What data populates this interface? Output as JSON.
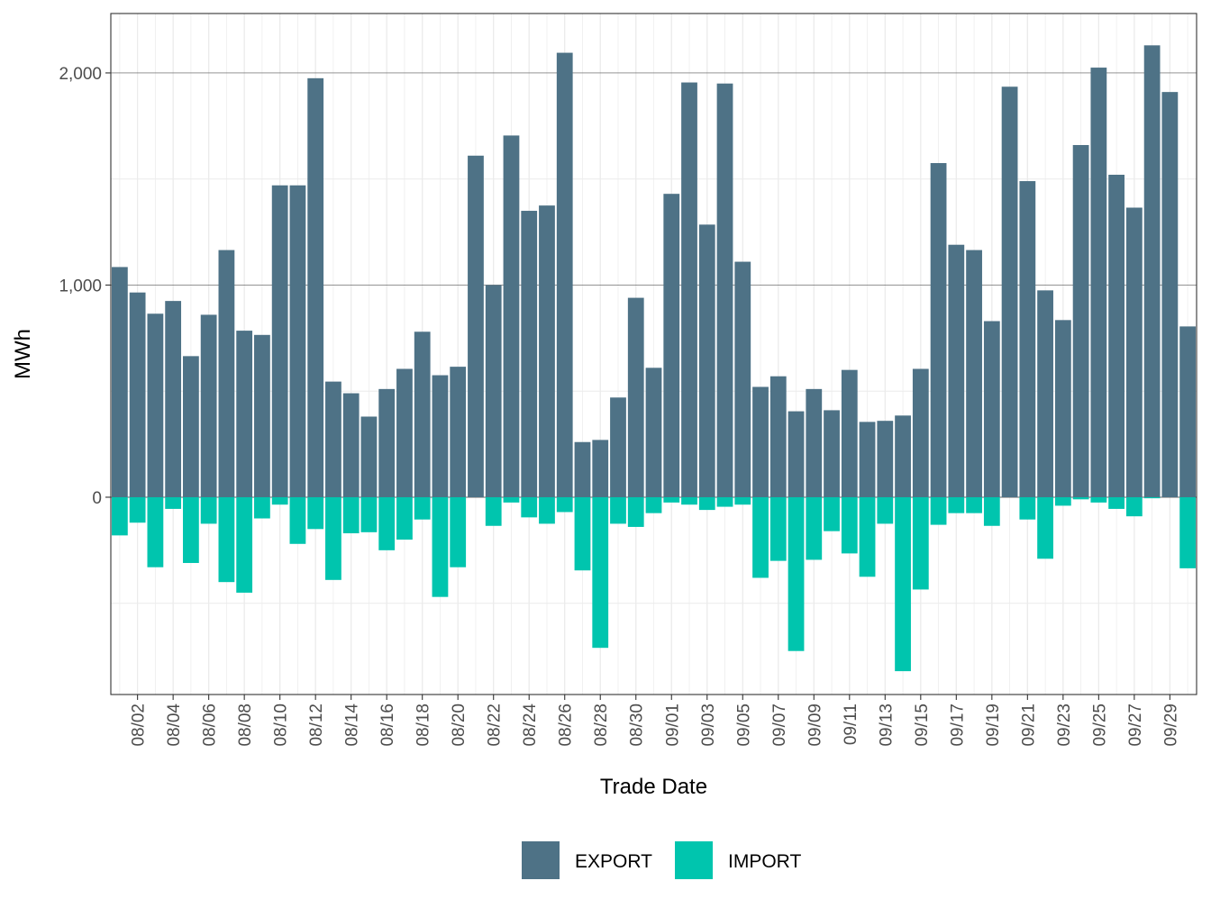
{
  "chart_data": {
    "type": "bar",
    "stacked": true,
    "title": "",
    "xlabel": "Trade Date",
    "ylabel": "MWh",
    "ylim": [
      -930,
      2280
    ],
    "yticks": [
      0,
      1000,
      2000
    ],
    "ytick_labels": [
      "0",
      "1,000",
      "2,000"
    ],
    "legend_position": "bottom",
    "dates": [
      "08/01",
      "08/02",
      "08/03",
      "08/04",
      "08/05",
      "08/06",
      "08/07",
      "08/08",
      "08/09",
      "08/10",
      "08/11",
      "08/12",
      "08/13",
      "08/14",
      "08/15",
      "08/16",
      "08/17",
      "08/18",
      "08/19",
      "08/20",
      "08/21",
      "08/22",
      "08/23",
      "08/24",
      "08/25",
      "08/26",
      "08/27",
      "08/28",
      "08/29",
      "08/30",
      "08/31",
      "09/01",
      "09/02",
      "09/03",
      "09/04",
      "09/05",
      "09/06",
      "09/07",
      "09/08",
      "09/09",
      "09/10",
      "09/11",
      "09/12",
      "09/13",
      "09/14",
      "09/15",
      "09/16",
      "09/17",
      "09/18",
      "09/19",
      "09/20",
      "09/21",
      "09/22",
      "09/23",
      "09/24",
      "09/25",
      "09/26",
      "09/27",
      "09/28",
      "09/29",
      "09/30"
    ],
    "tick_labels": [
      "08/02",
      "08/04",
      "08/06",
      "08/08",
      "08/10",
      "08/12",
      "08/14",
      "08/16",
      "08/18",
      "08/20",
      "08/22",
      "08/24",
      "08/26",
      "08/28",
      "08/30",
      "09/01",
      "09/03",
      "09/05",
      "09/07",
      "09/09",
      "09/11",
      "09/13",
      "09/15",
      "09/17",
      "09/19",
      "09/21",
      "09/23",
      "09/25",
      "09/27",
      "09/29"
    ],
    "series": [
      {
        "name": "EXPORT",
        "color": "#4e7286",
        "values": [
          1085,
          965,
          865,
          925,
          665,
          860,
          1165,
          785,
          765,
          1470,
          1470,
          1975,
          545,
          490,
          380,
          510,
          605,
          780,
          575,
          615,
          1610,
          1000,
          1705,
          1350,
          1375,
          2095,
          260,
          270,
          470,
          940,
          610,
          1430,
          1955,
          1285,
          1950,
          1110,
          520,
          570,
          405,
          510,
          410,
          600,
          355,
          360,
          385,
          605,
          1575,
          1190,
          1165,
          830,
          1935,
          1490,
          975,
          835,
          1660,
          2025,
          1520,
          1365,
          2130,
          1910,
          805
        ]
      },
      {
        "name": "IMPORT",
        "color": "#00c5ae",
        "values": [
          -180,
          -120,
          -330,
          -55,
          -310,
          -125,
          -400,
          -450,
          -100,
          -35,
          -220,
          -150,
          -390,
          -170,
          -165,
          -250,
          -200,
          -105,
          -470,
          -330,
          0,
          -135,
          -25,
          -95,
          -125,
          -70,
          -345,
          -710,
          -125,
          -140,
          -75,
          -25,
          -35,
          -60,
          -45,
          -35,
          -380,
          -300,
          -725,
          -295,
          -160,
          -265,
          -375,
          -125,
          -820,
          -435,
          -130,
          -75,
          -75,
          -135,
          0,
          -105,
          -290,
          -40,
          -10,
          -25,
          -55,
          -90,
          -5,
          0,
          -335
        ]
      }
    ]
  }
}
